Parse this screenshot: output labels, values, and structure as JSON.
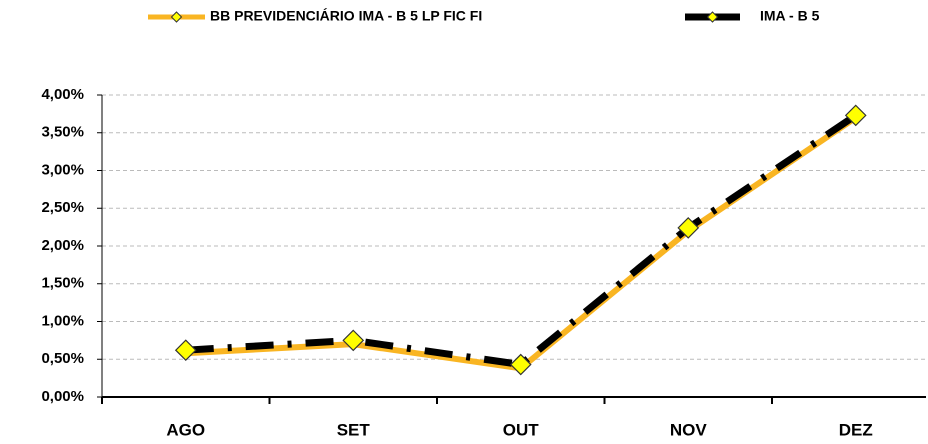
{
  "chart_data": {
    "type": "line",
    "categories": [
      "AGO",
      "SET",
      "OUT",
      "NOV",
      "DEZ"
    ],
    "series": [
      {
        "name": "BB PREVIDENCIÁRIO IMA - B 5 LP FIC FI",
        "color": "#f9b522",
        "values": [
          0.58,
          0.7,
          0.38,
          2.2,
          3.7
        ]
      },
      {
        "name": "IMA - B 5",
        "color": "#000000",
        "values": [
          0.62,
          0.75,
          0.43,
          2.24,
          3.73
        ]
      }
    ],
    "ylim": [
      0,
      4
    ],
    "yticks": [
      {
        "value": 0,
        "label": "0,00%"
      },
      {
        "value": 0.5,
        "label": "0,50%"
      },
      {
        "value": 1,
        "label": "1,00%"
      },
      {
        "value": 1.5,
        "label": "1,50%"
      },
      {
        "value": 2,
        "label": "2,00%"
      },
      {
        "value": 2.5,
        "label": "2,50%"
      },
      {
        "value": 3,
        "label": "3,00%"
      },
      {
        "value": 3.5,
        "label": "3,50%"
      },
      {
        "value": 4,
        "label": "4,00%"
      }
    ],
    "grid": true,
    "legend": "top"
  }
}
